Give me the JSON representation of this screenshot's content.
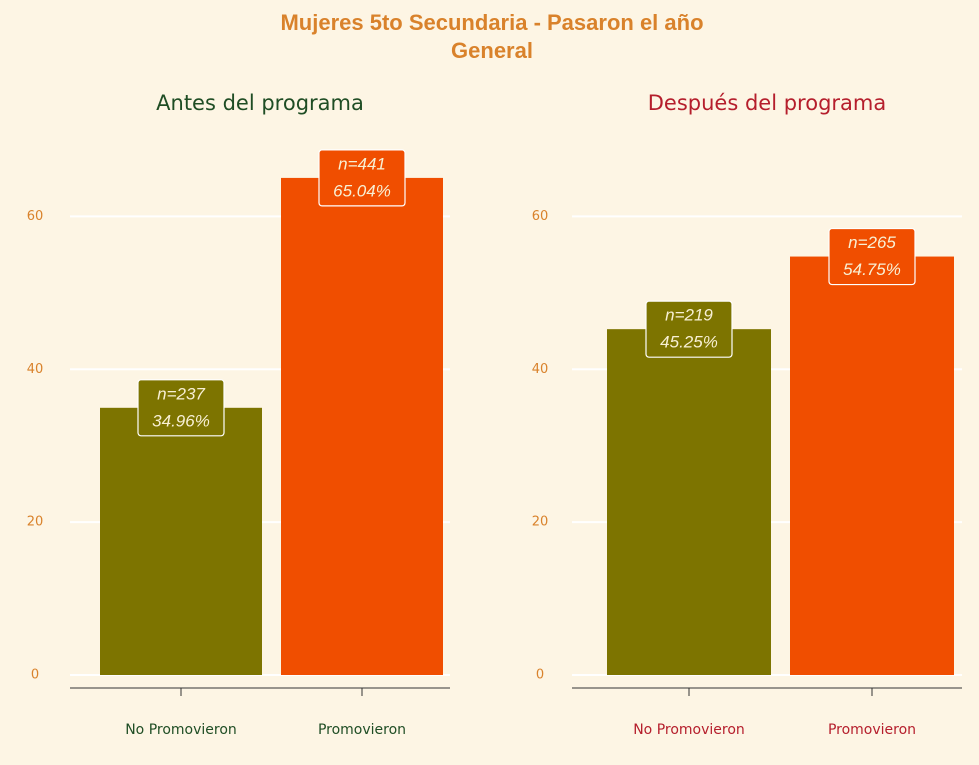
{
  "title": [
    "Mujeres 5to Secundaria - Pasaron el año",
    "General"
  ],
  "chart_data": [
    {
      "type": "bar",
      "title": "Antes del programa",
      "title_color": "#1f4d24",
      "categories": [
        "No Promovieron",
        "Promovieron"
      ],
      "values": [
        34.96,
        65.04
      ],
      "value_labels": [
        "34.96%",
        "65.04%"
      ],
      "count_labels": [
        "n=237",
        "n=441"
      ],
      "colors": [
        "#7d7400",
        "#f04e00"
      ],
      "ylim": [
        -1.7,
        70
      ],
      "yticks": [
        0,
        20,
        40,
        60
      ],
      "grid": true
    },
    {
      "type": "bar",
      "title": "Después del programa",
      "title_color": "#b51e2c",
      "categories": [
        "No Promovieron",
        "Promovieron"
      ],
      "values": [
        45.25,
        54.75
      ],
      "value_labels": [
        "45.25%",
        "54.75%"
      ],
      "count_labels": [
        "n=219",
        "n=265"
      ],
      "colors": [
        "#7d7400",
        "#f04e00"
      ],
      "ylim": [
        -1.7,
        70
      ],
      "yticks": [
        0,
        20,
        40,
        60
      ],
      "grid": true
    }
  ]
}
